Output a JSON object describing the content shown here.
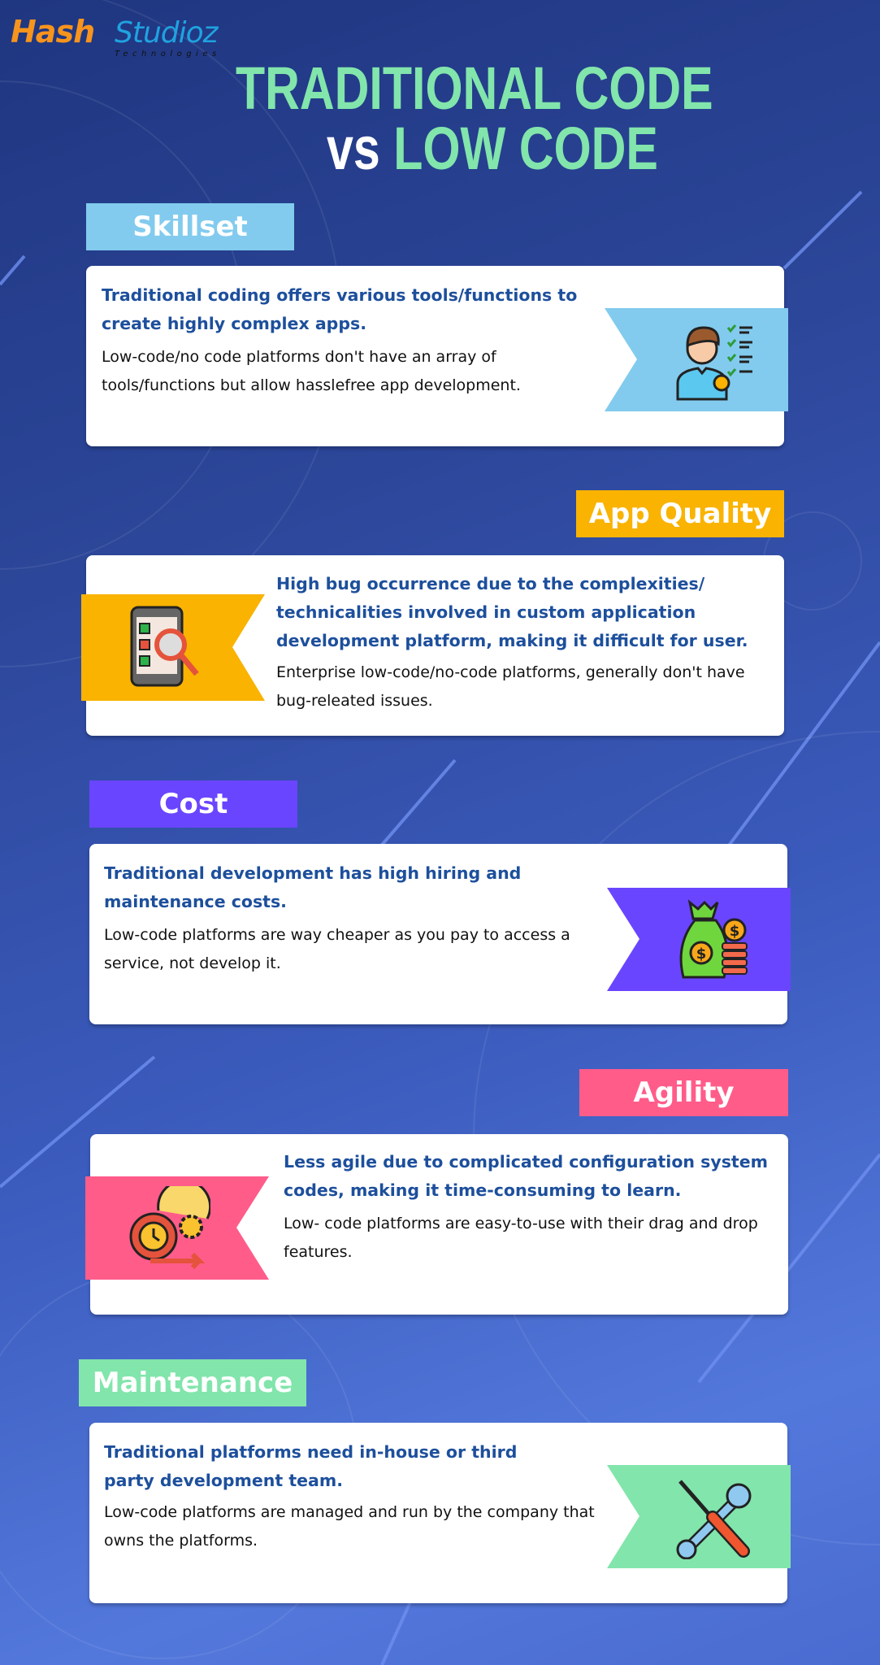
{
  "logo": {
    "brand": "HashStudioz",
    "sub": "Technologies"
  },
  "title": {
    "line1": "TRADITIONAL CODE",
    "vs": "vs",
    "line2": "LOW CODE"
  },
  "sections": [
    {
      "tag": "Skillset",
      "color": "#82cbee",
      "icon": "skilled-person-checklist-icon",
      "heading": "Traditional coding offers various tools/functions to create highly complex apps.",
      "body": "Low-code/no code platforms don't have an array of tools/functions but allow hasslefree app development."
    },
    {
      "tag": "App Quality",
      "color": "#f9b300",
      "icon": "phone-bug-search-icon",
      "heading": "High bug occurrence due to the complexities/ technicalities involved in custom application development platform, making it difficult for user.",
      "body": "Enterprise low-code/no-code platforms, generally don't have bug-releated issues."
    },
    {
      "tag": "Cost",
      "color": "#6a45ff",
      "icon": "money-bag-coins-icon",
      "heading": "Traditional development has high hiring and maintenance costs.",
      "body": "Low-code platforms are way cheaper as you pay to access a service, not develop it."
    },
    {
      "tag": "Agility",
      "color": "#ff5c8a",
      "icon": "time-gear-cycle-icon",
      "heading": "Less agile due to complicated configuration system codes, making it time-consuming to learn.",
      "body": "Low- code platforms are easy-to-use with their drag and drop features."
    },
    {
      "tag": "Maintenance",
      "color": "#82e5ac",
      "icon": "wrench-screwdriver-icon",
      "heading": "Traditional platforms need in-house or third party development team.",
      "body": "Low-code platforms are managed and run by the company that owns the platforms."
    }
  ]
}
